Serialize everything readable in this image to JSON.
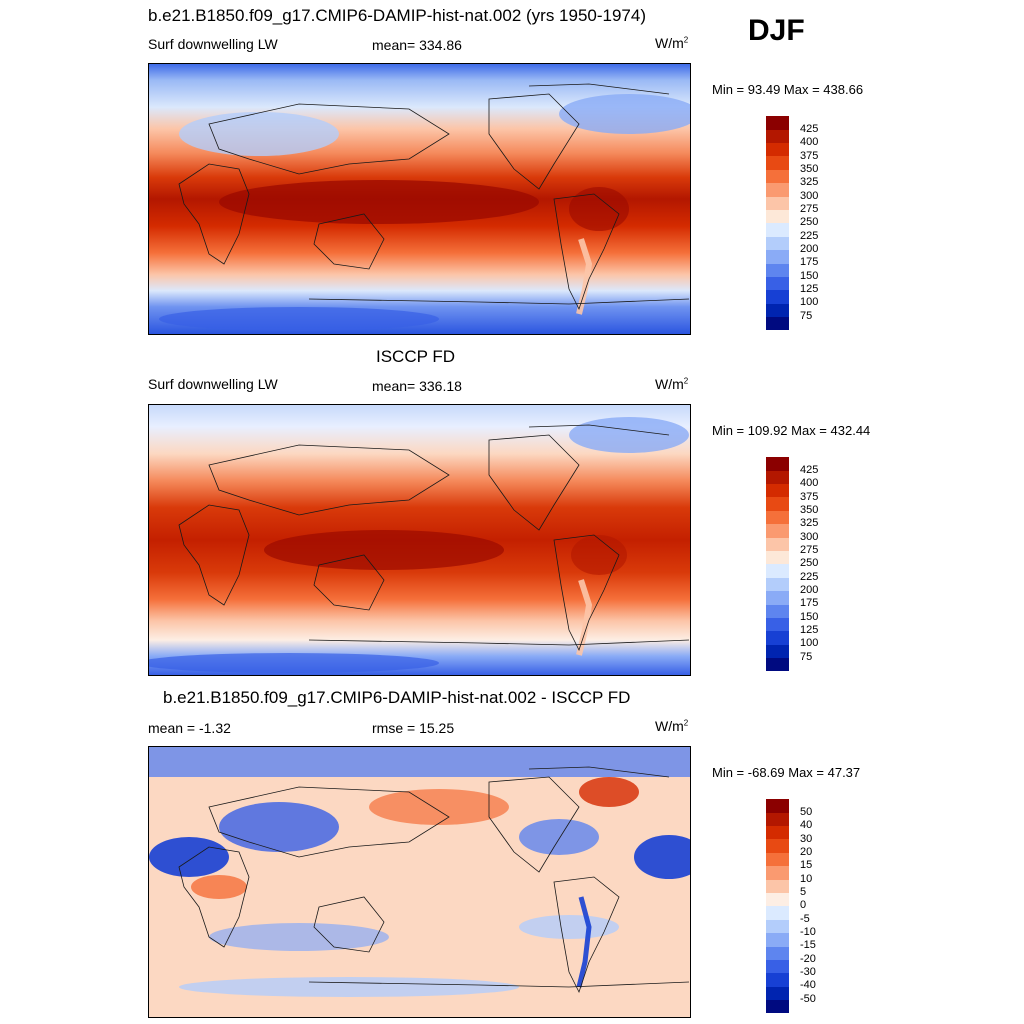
{
  "season": "DJF",
  "panels": [
    {
      "title": "b.e21.B1850.f09_g17.CMIP6-DAMIP-hist-nat.002 (yrs 1950-1974)",
      "variable": "Surf downwelling LW",
      "stat_left": "",
      "stat_mid": "mean= 334.86",
      "units_base": "W/m",
      "units_exp": "2",
      "minmax": "Min =  93.49 Max = 438.66",
      "colorbar": {
        "labels": [
          "425",
          "400",
          "375",
          "350",
          "325",
          "300",
          "275",
          "250",
          "225",
          "200",
          "175",
          "150",
          "125",
          "100",
          "75"
        ],
        "colors": [
          "#8b0000",
          "#b31700",
          "#d42b00",
          "#e84a13",
          "#f5703a",
          "#fa9a70",
          "#fcc5a8",
          "#fde8d8",
          "#dbeaff",
          "#b3cdfb",
          "#8aabf6",
          "#5e85ef",
          "#3860e6",
          "#1740d4",
          "#0024b0",
          "#000a80"
        ]
      }
    },
    {
      "title": "ISCCP FD",
      "variable": "Surf downwelling LW",
      "stat_left": "",
      "stat_mid": "mean= 336.18",
      "units_base": "W/m",
      "units_exp": "2",
      "minmax": "Min = 109.92 Max = 432.44",
      "colorbar": {
        "labels": [
          "425",
          "400",
          "375",
          "350",
          "325",
          "300",
          "275",
          "250",
          "225",
          "200",
          "175",
          "150",
          "125",
          "100",
          "75"
        ],
        "colors": [
          "#8b0000",
          "#b31700",
          "#d42b00",
          "#e84a13",
          "#f5703a",
          "#fa9a70",
          "#fcc5a8",
          "#fde8d8",
          "#dbeaff",
          "#b3cdfb",
          "#8aabf6",
          "#5e85ef",
          "#3860e6",
          "#1740d4",
          "#0024b0",
          "#000a80"
        ]
      }
    },
    {
      "title": "b.e21.B1850.f09_g17.CMIP6-DAMIP-hist-nat.002 - ISCCP FD",
      "variable": "",
      "stat_left": "mean =  -1.32",
      "stat_mid": "rmse =  15.25",
      "units_base": "W/m",
      "units_exp": "2",
      "minmax": "Min = -68.69 Max =  47.37",
      "colorbar": {
        "labels": [
          "50",
          "40",
          "30",
          "20",
          "15",
          "10",
          "5",
          "0",
          "-5",
          "-10",
          "-15",
          "-20",
          "-30",
          "-40",
          "-50"
        ],
        "colors": [
          "#8b0000",
          "#b31700",
          "#d42b00",
          "#e84a13",
          "#f5703a",
          "#fa9a70",
          "#fcc5a8",
          "#fdeee4",
          "#dbeaff",
          "#b3cdfb",
          "#8aabf6",
          "#5e85ef",
          "#3860e6",
          "#1740d4",
          "#0024b0",
          "#000a80"
        ]
      }
    }
  ],
  "chart_data": [
    {
      "type": "heatmap",
      "title": "b.e21.B1850.f09_g17.CMIP6-DAMIP-hist-nat.002 (yrs 1950-1974)",
      "variable": "Surf downwelling LW",
      "units": "W/m2",
      "mean": 334.86,
      "min": 93.49,
      "max": 438.66,
      "contour_levels": [
        75,
        100,
        125,
        150,
        175,
        200,
        225,
        250,
        275,
        300,
        325,
        350,
        375,
        400,
        425
      ]
    },
    {
      "type": "heatmap",
      "title": "ISCCP FD",
      "variable": "Surf downwelling LW",
      "units": "W/m2",
      "mean": 336.18,
      "min": 109.92,
      "max": 432.44,
      "contour_levels": [
        75,
        100,
        125,
        150,
        175,
        200,
        225,
        250,
        275,
        300,
        325,
        350,
        375,
        400,
        425
      ]
    },
    {
      "type": "heatmap",
      "title": "b.e21.B1850.f09_g17.CMIP6-DAMIP-hist-nat.002 - ISCCP FD",
      "units": "W/m2",
      "mean": -1.32,
      "rmse": 15.25,
      "min": -68.69,
      "max": 47.37,
      "contour_levels": [
        -50,
        -40,
        -30,
        -20,
        -15,
        -10,
        -5,
        0,
        5,
        10,
        15,
        20,
        30,
        40,
        50
      ]
    }
  ]
}
